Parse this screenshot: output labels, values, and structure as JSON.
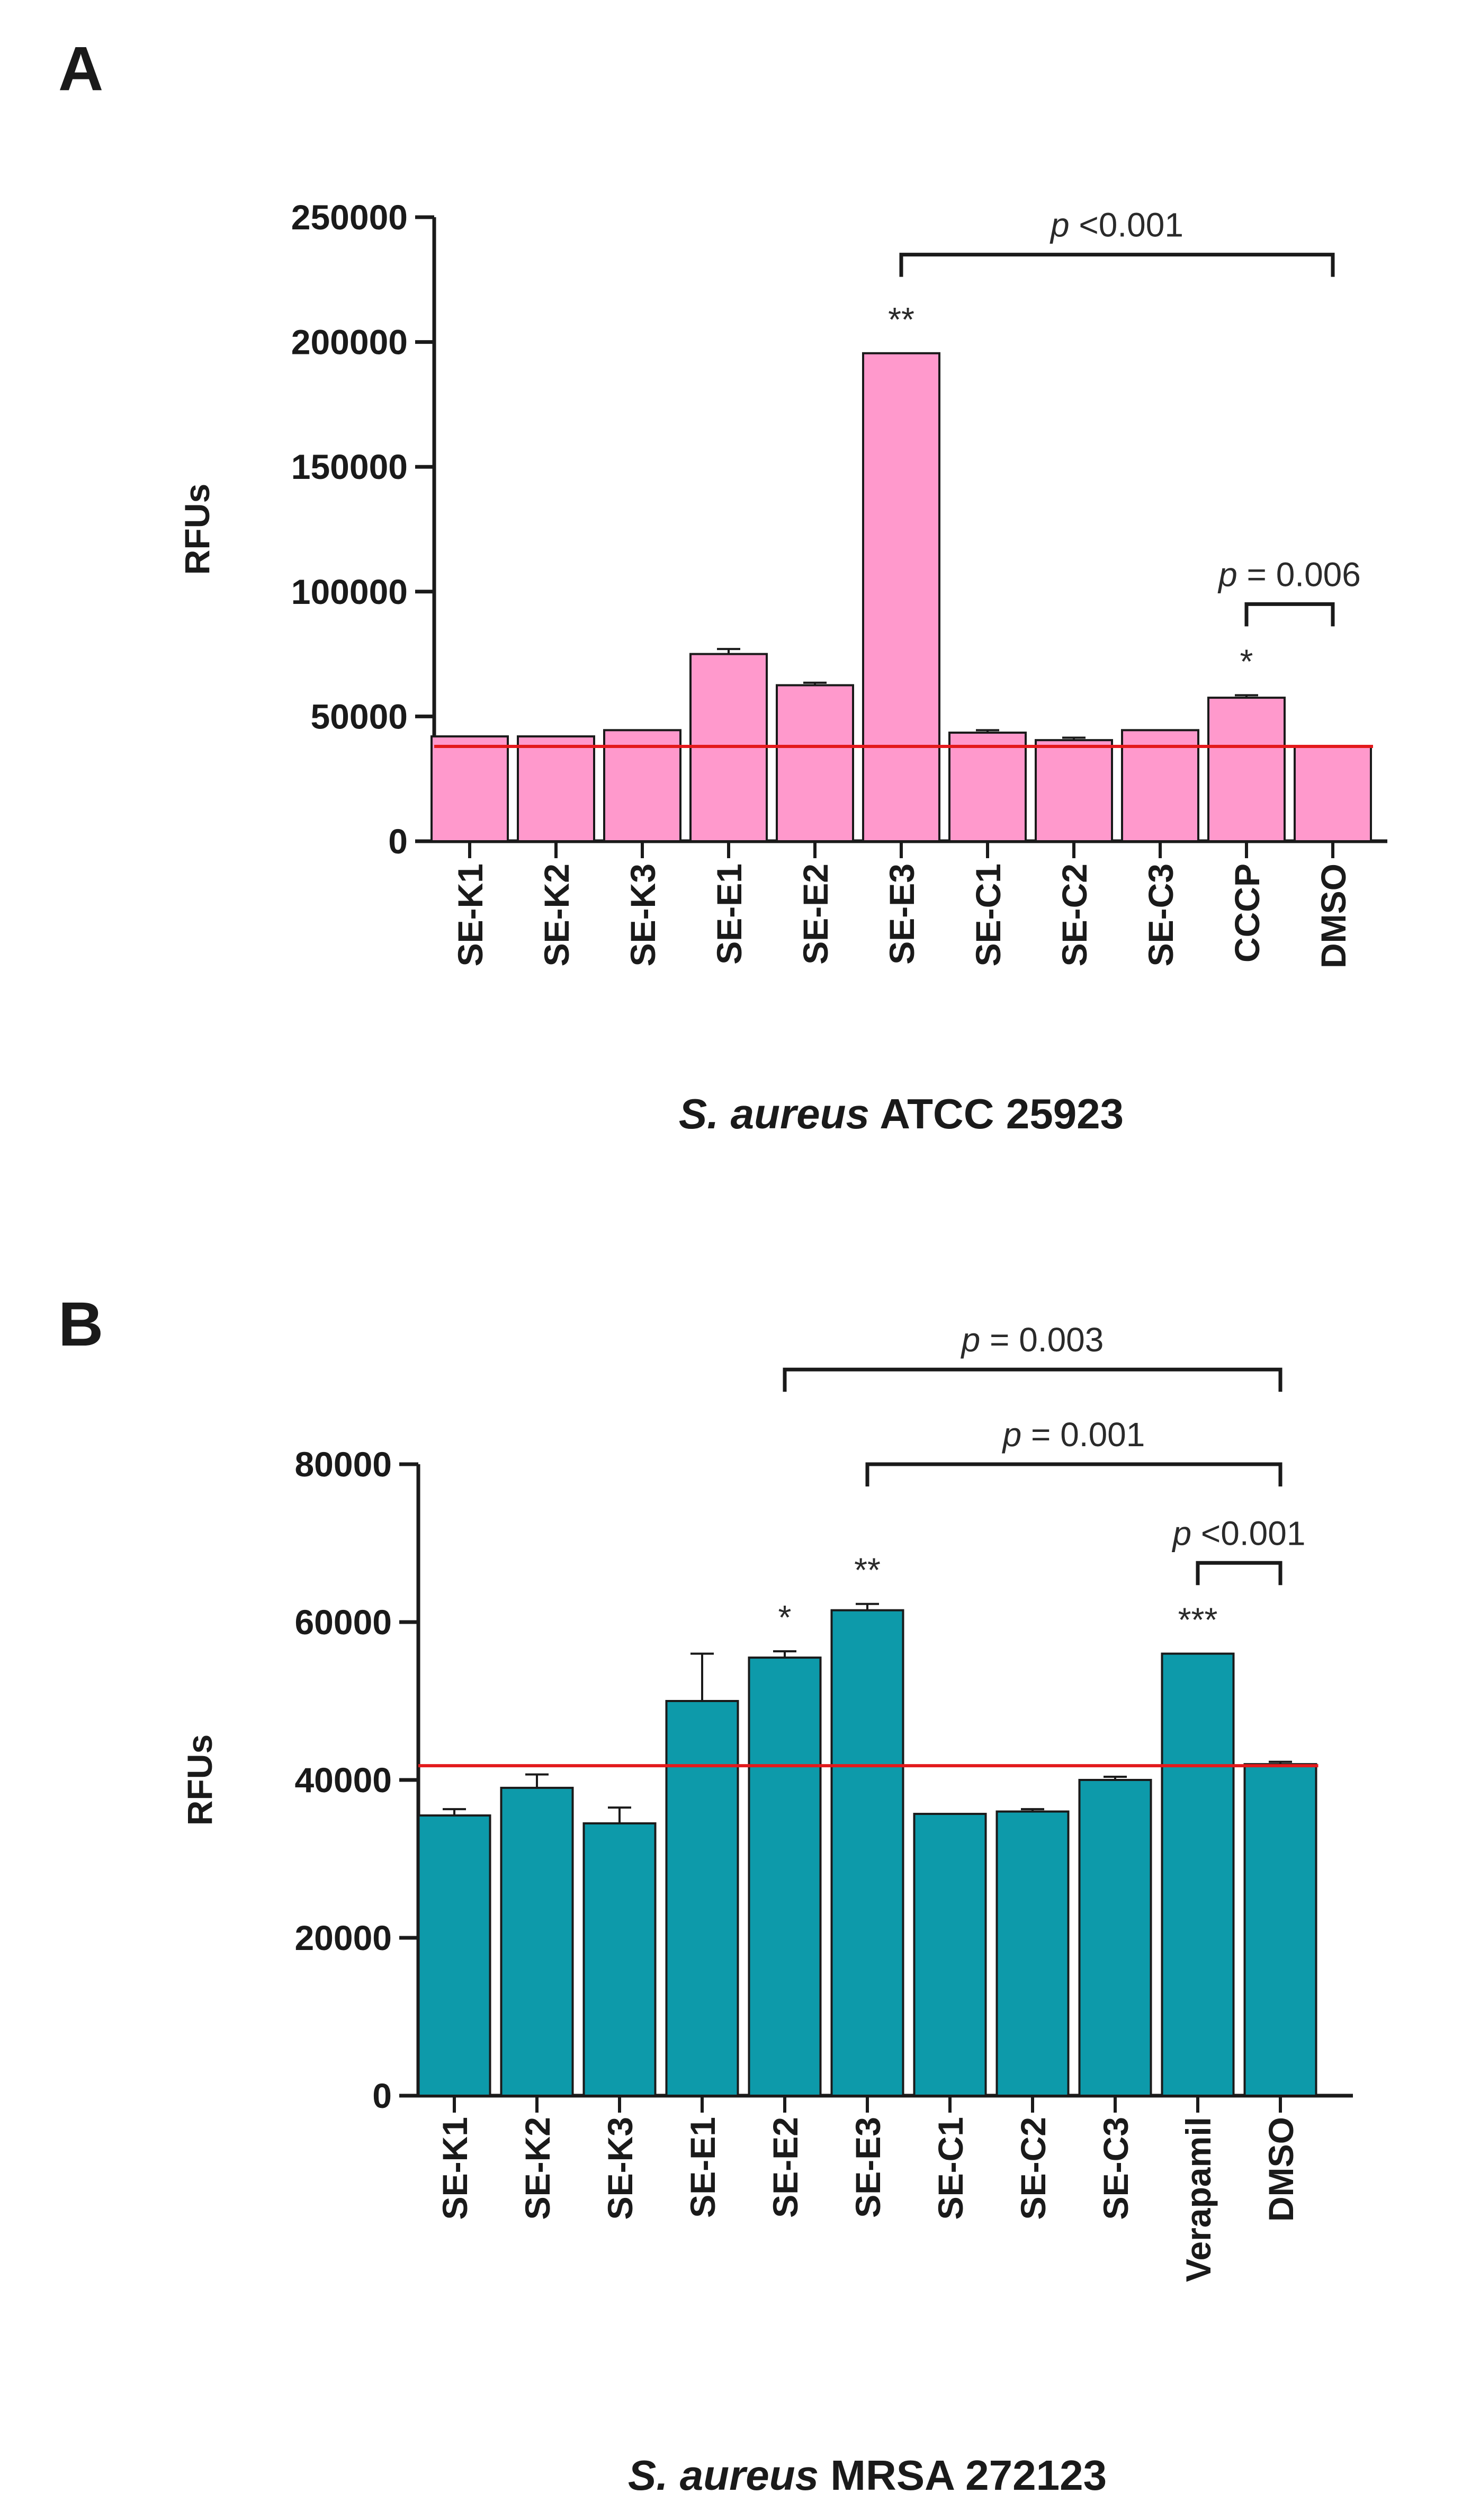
{
  "chart_data": [
    {
      "panel": "A",
      "type": "bar",
      "title": "",
      "xlabel": {
        "italic": "S. aureus",
        "rest": " ATCC 25923"
      },
      "ylabel": "RFUs",
      "ylim": [
        0,
        250000
      ],
      "yticks": [
        0,
        50000,
        100000,
        150000,
        200000,
        250000
      ],
      "yticklabels": [
        "0",
        "50000",
        "100000",
        "150000",
        "200000",
        "250000"
      ],
      "categories": [
        "SE-K1",
        "SE-K2",
        "SE-K3",
        "SE-E1",
        "SE-E2",
        "SE-E3",
        "SE-C1",
        "SE-C2",
        "SE-C3",
        "CCCP",
        "DMSO"
      ],
      "values": [
        42000,
        42000,
        44500,
        75000,
        62500,
        195500,
        43500,
        40500,
        44500,
        57500,
        38000
      ],
      "errors": [
        0,
        0,
        0,
        2000,
        1000,
        0,
        1000,
        1000,
        0,
        1000,
        0
      ],
      "bar_color": "#ff99cc",
      "reference_line": {
        "value": 38000,
        "color": "#e31a1c"
      },
      "significance": [
        {
          "category": "SE-E3",
          "label": "**"
        },
        {
          "category": "CCCP",
          "label": "*"
        }
      ],
      "brackets": [
        {
          "from": "SE-E3",
          "to": "DMSO",
          "level": 235000,
          "p_italic": "p",
          "p_rest": " <0.001"
        },
        {
          "from": "CCCP",
          "to": "DMSO",
          "level": 95000,
          "p_italic": "p",
          "p_rest": " =  0.006"
        }
      ]
    },
    {
      "panel": "B",
      "type": "bar",
      "title": "",
      "xlabel": {
        "italic": "S. aureus",
        "rest": " MRSA 272123"
      },
      "ylabel": "RFUs",
      "ylim": [
        0,
        80000
      ],
      "yticks": [
        0,
        20000,
        40000,
        60000,
        80000
      ],
      "yticklabels": [
        "0",
        "20000",
        "40000",
        "60000",
        "80000"
      ],
      "categories": [
        "SE-K1",
        "SE-K2",
        "SE-K3",
        "SE-E1",
        "SE-E2",
        "SE-E3",
        "SE-C1",
        "SE-C2",
        "SE-C3",
        "Verapamil",
        "DMSO"
      ],
      "values": [
        35500,
        39000,
        34500,
        50000,
        55500,
        61500,
        35700,
        36000,
        40000,
        56000,
        42000
      ],
      "errors": [
        800,
        1700,
        2000,
        6000,
        800,
        800,
        0,
        300,
        400,
        0,
        300
      ],
      "bar_color": "#0d9aaa",
      "reference_line": {
        "value": 41800,
        "color": "#e31a1c"
      },
      "significance": [
        {
          "category": "SE-E2",
          "label": "*"
        },
        {
          "category": "SE-E3",
          "label": "**"
        },
        {
          "category": "Verapamil",
          "label": "***"
        }
      ],
      "brackets": [
        {
          "from": "SE-E2",
          "to": "DMSO",
          "level": 92000,
          "p_italic": "p",
          "p_rest": " = 0.003"
        },
        {
          "from": "SE-E3",
          "to": "DMSO",
          "level": 80000,
          "p_italic": "p",
          "p_rest": " = 0.001"
        },
        {
          "from": "Verapamil",
          "to": "DMSO",
          "level": 67500,
          "p_italic": "p",
          "p_rest": " <0.001"
        }
      ]
    }
  ]
}
